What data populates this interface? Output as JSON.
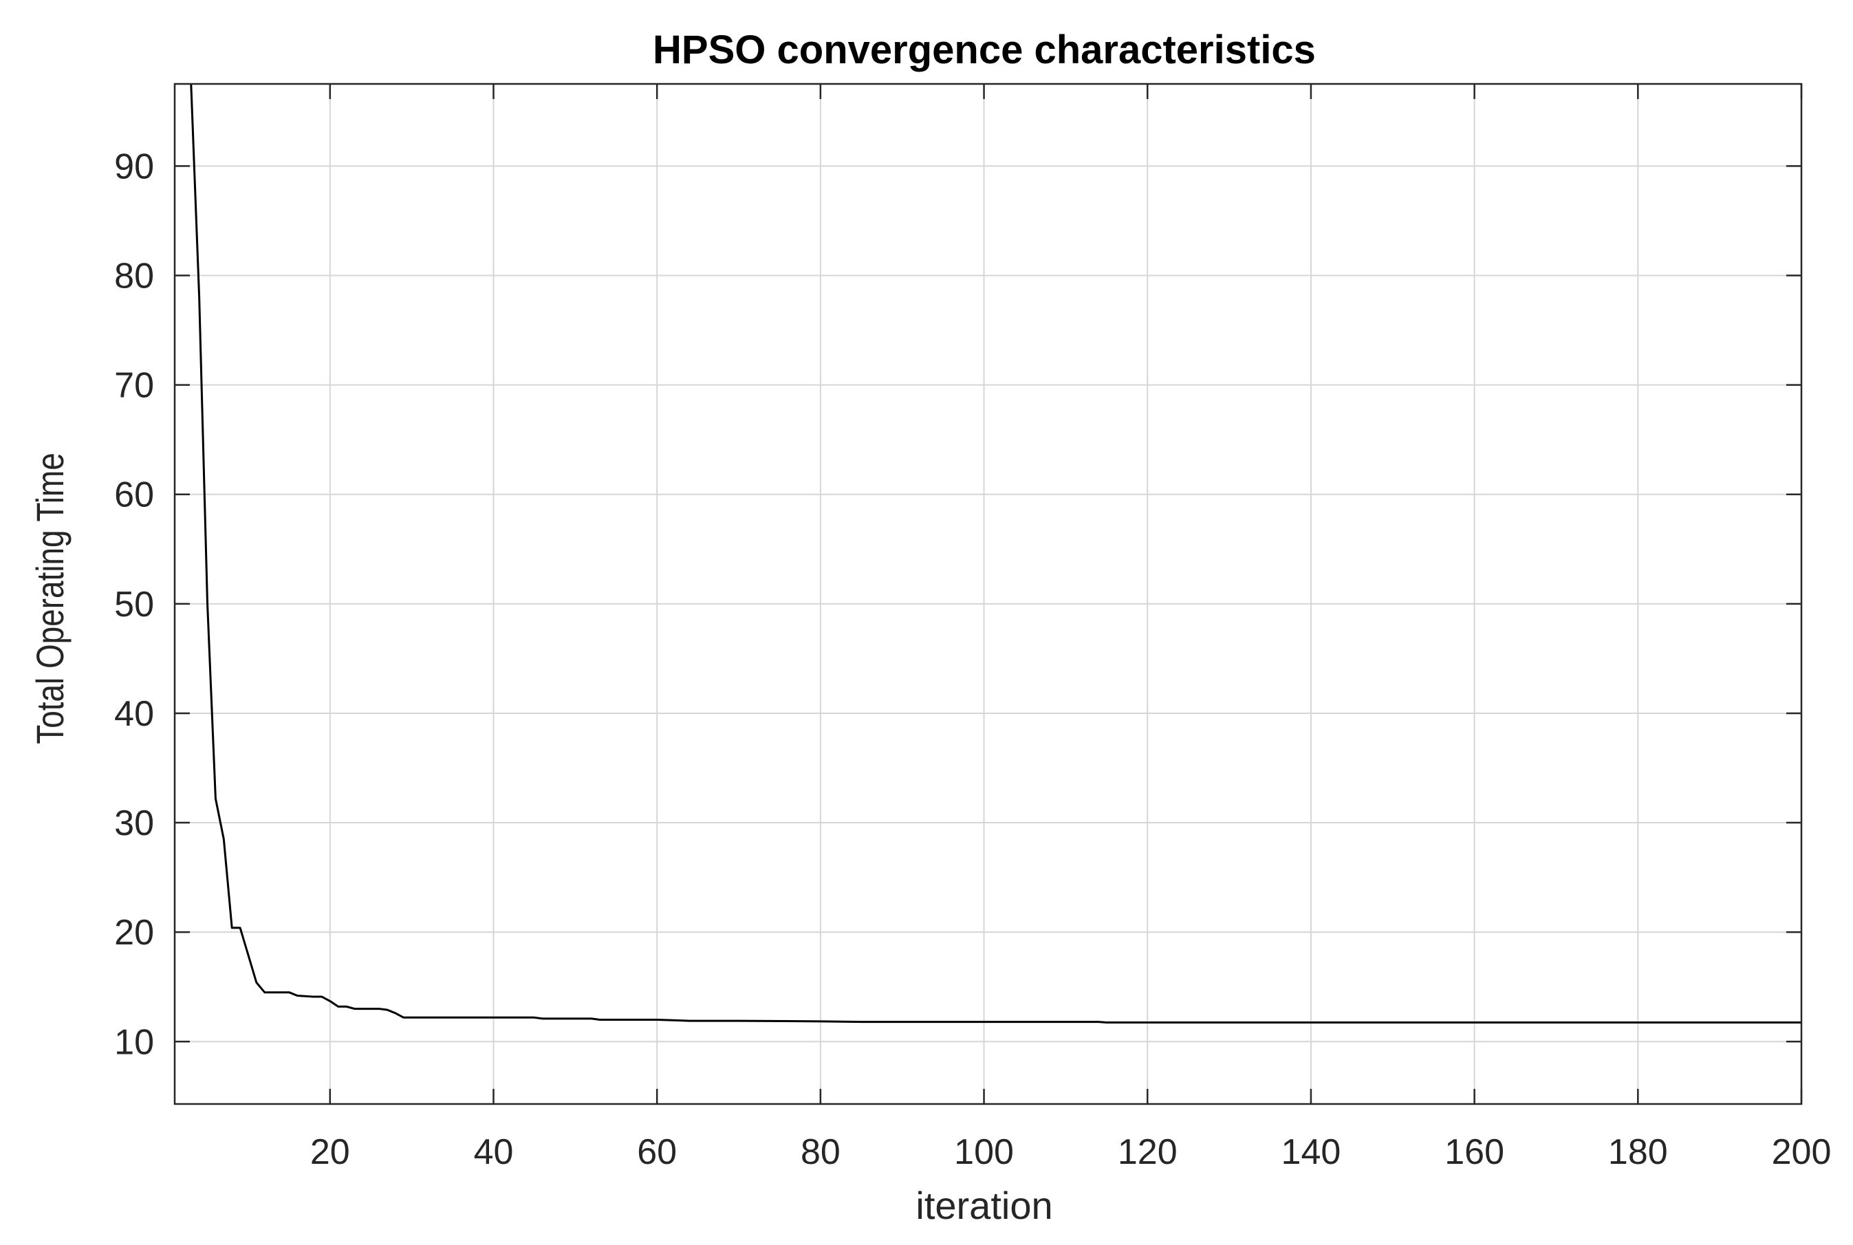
{
  "chart_data": {
    "type": "line",
    "title": "HPSO convergence characteristics",
    "xlabel": "iteration",
    "ylabel": "Total Operating Time",
    "xlim": [
      1,
      200
    ],
    "ylim": [
      4.3,
      97.5
    ],
    "xticks": [
      20,
      40,
      60,
      80,
      100,
      120,
      140,
      160,
      180,
      200
    ],
    "yticks": [
      10,
      20,
      30,
      40,
      50,
      60,
      70,
      80,
      90
    ],
    "grid": true,
    "box": true,
    "series": [
      {
        "color": "#000000",
        "x": [
          3,
          4,
          5,
          6,
          7,
          8,
          9,
          10,
          11,
          12,
          14,
          15,
          16,
          18,
          19,
          20,
          21,
          22,
          23,
          25,
          26,
          27,
          28,
          29,
          30,
          35,
          40,
          45,
          46,
          50,
          52,
          53,
          55,
          60,
          62,
          64,
          70,
          80,
          85,
          90,
          100,
          110,
          114,
          115,
          120,
          140,
          160,
          180,
          200
        ],
        "y": [
          97.5,
          78,
          50,
          32.2,
          28.5,
          20.4,
          20.4,
          17.9,
          15.4,
          14.5,
          14.5,
          14.5,
          14.2,
          14.1,
          14.1,
          13.7,
          13.2,
          13.2,
          13.0,
          13.0,
          13.0,
          12.9,
          12.6,
          12.2,
          12.2,
          12.2,
          12.2,
          12.2,
          12.1,
          12.1,
          12.1,
          12.0,
          12.0,
          12.0,
          11.95,
          11.9,
          11.9,
          11.85,
          11.8,
          11.8,
          11.8,
          11.8,
          11.8,
          11.75,
          11.75,
          11.75,
          11.75,
          11.75,
          11.75
        ]
      }
    ]
  }
}
